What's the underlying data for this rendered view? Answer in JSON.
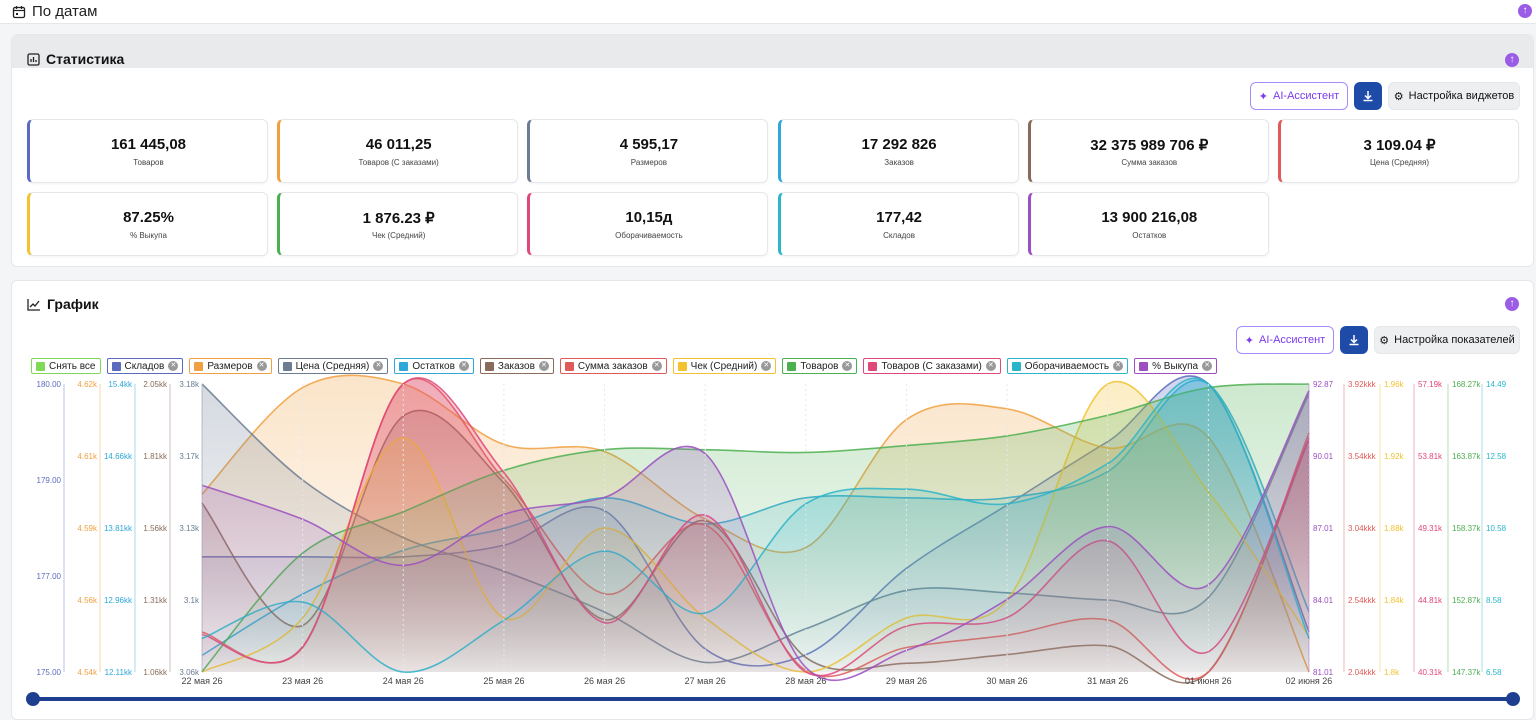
{
  "header": {
    "title": "По датам"
  },
  "stats": {
    "title": "Статистика",
    "ai_label": "AI-Ассистент",
    "settings_label": "Настройка виджетов",
    "cards": [
      {
        "value": "161 445,08",
        "label": "Товаров",
        "color": "#5b6bbf"
      },
      {
        "value": "46 011,25",
        "label": "Товаров (С заказами)",
        "color": "#f0a040"
      },
      {
        "value": "4 595,17",
        "label": "Размеров",
        "color": "#6b7c93"
      },
      {
        "value": "17 292 826",
        "label": "Заказов",
        "color": "#2ea8d8"
      },
      {
        "value": "32 375 989 706 ₽",
        "label": "Сумма заказов",
        "color": "#8a6a5a"
      },
      {
        "value": "3 109.04 ₽",
        "label": "Цена (Средняя)",
        "color": "#e05a5a"
      },
      {
        "value": "87.25%",
        "label": "% Выкупа",
        "color": "#f2c230"
      },
      {
        "value": "1 876.23 ₽",
        "label": "Чек (Средний)",
        "color": "#4caf50"
      },
      {
        "value": "10,15д",
        "label": "Оборачиваемость",
        "color": "#e0487a"
      },
      {
        "value": "177,42",
        "label": "Складов",
        "color": "#2bb5c8"
      },
      {
        "value": "13 900 216,08",
        "label": "Остатков",
        "color": "#9b4fc0"
      }
    ]
  },
  "graph": {
    "title": "График",
    "ai_label": "AI-Ассистент",
    "settings_label": "Настройка показателей",
    "legend": [
      {
        "label": "Снять все",
        "color": "#7ed957",
        "closable": false
      },
      {
        "label": "Складов",
        "color": "#5b6bbf",
        "closable": true
      },
      {
        "label": "Размеров",
        "color": "#f0a040",
        "closable": true
      },
      {
        "label": "Цена (Средняя)",
        "color": "#6b7c93",
        "closable": true
      },
      {
        "label": "Остатков",
        "color": "#2ea8d8",
        "closable": true
      },
      {
        "label": "Заказов",
        "color": "#8a6a5a",
        "closable": true
      },
      {
        "label": "Сумма заказов",
        "color": "#e05a5a",
        "closable": true
      },
      {
        "label": "Чек (Средний)",
        "color": "#f2c230",
        "closable": true
      },
      {
        "label": "Товаров",
        "color": "#4caf50",
        "closable": true
      },
      {
        "label": "Товаров (С заказами)",
        "color": "#e0487a",
        "closable": true
      },
      {
        "label": "Оборачиваемость",
        "color": "#2bb5c8",
        "closable": true
      },
      {
        "label": "% Выкупа",
        "color": "#9b4fc0",
        "closable": true
      }
    ]
  },
  "chart_data": {
    "type": "line",
    "x": [
      "22 мая 26",
      "23 мая 26",
      "24 мая 26",
      "25 мая 26",
      "26 мая 26",
      "27 мая 26",
      "28 мая 26",
      "29 мая 26",
      "30 мая 26",
      "31 мая 26",
      "01 июня 26",
      "02 июня 26"
    ],
    "axes_left": [
      {
        "color": "#5b6bbf",
        "ticks": [
          "180.00",
          "179.00",
          "177.00",
          "175.00"
        ]
      },
      {
        "color": "#f0a040",
        "ticks": [
          "4.62k",
          "4.61k",
          "4.59k",
          "4.56k",
          "4.54k"
        ]
      },
      {
        "color": "#2ea8d8",
        "ticks": [
          "15.4kk",
          "14.66kk",
          "13.81kk",
          "12.96kk",
          "12.11kk"
        ]
      },
      {
        "color": "#8a6a5a",
        "ticks": [
          "2.05kk",
          "1.81kk",
          "1.56kk",
          "1.31kk",
          "1.06kk"
        ]
      },
      {
        "color": "#6b7c93",
        "ticks": [
          "3.18k",
          "3.17k",
          "3.13k",
          "3.1k",
          "3.06k"
        ]
      }
    ],
    "axes_right": [
      {
        "color": "#9b4fc0",
        "ticks": [
          "92.87",
          "90.01",
          "87.01",
          "84.01",
          "81.01"
        ]
      },
      {
        "color": "#e05a5a",
        "ticks": [
          "3.92kkk",
          "3.54kkk",
          "3.04kkk",
          "2.54kkk",
          "2.04kkk"
        ]
      },
      {
        "color": "#f2c230",
        "ticks": [
          "1.96k",
          "1.92k",
          "1.88k",
          "1.84k",
          "1.8k"
        ]
      },
      {
        "color": "#e0487a",
        "ticks": [
          "57.19k",
          "53.81k",
          "49.31k",
          "44.81k",
          "40.31k"
        ]
      },
      {
        "color": "#4caf50",
        "ticks": [
          "168.27k",
          "163.87k",
          "158.37k",
          "152.87k",
          "147.37k"
        ]
      },
      {
        "color": "#2bb5c8",
        "ticks": [
          "14.49",
          "12.58",
          "10.58",
          "8.58",
          "6.58"
        ]
      }
    ],
    "series": [
      {
        "name": "Складов",
        "color": "#5b6bbf",
        "values": [
          177.0,
          177.0,
          177.0,
          177.2,
          177.8,
          175.4,
          175.3,
          176.8,
          177.9,
          179.0,
          180.0,
          175.7
        ],
        "range": [
          175,
          180
        ]
      },
      {
        "name": "Размеров",
        "color": "#f0a040",
        "values": [
          4590,
          4620,
          4621,
          4604,
          4602,
          4583,
          4575,
          4611,
          4614,
          4603,
          4606,
          4540
        ],
        "range": [
          4540,
          4621
        ]
      },
      {
        "name": "Цена (Средняя)",
        "color": "#6b7c93",
        "values": [
          3180,
          3140,
          3116,
          3102,
          3085,
          3064,
          3078,
          3094,
          3093,
          3090,
          3091,
          3176
        ],
        "range": [
          3060,
          3180
        ]
      },
      {
        "name": "Остатков",
        "color": "#2ea8d8",
        "values": [
          12.3,
          13.0,
          13.5,
          13.75,
          14.1,
          13.8,
          14.1,
          14.1,
          14.1,
          14.4,
          15.4,
          12.8
        ],
        "range": [
          12.11,
          15.4
        ]
      },
      {
        "name": "Заказов",
        "color": "#8a6a5a",
        "values": [
          1.64,
          1.22,
          1.94,
          1.71,
          1.24,
          1.58,
          1.11,
          1.09,
          1.12,
          1.15,
          1.06,
          1.86
        ],
        "range": [
          1.06,
          2.05
        ]
      },
      {
        "name": "Сумма заказов",
        "color": "#e05a5a",
        "values": [
          2.3,
          2.2,
          3.92,
          3.3,
          2.55,
          3.0,
          2.05,
          2.2,
          2.28,
          2.38,
          2.04,
          3.6
        ],
        "range": [
          2.04,
          3.92
        ]
      },
      {
        "name": "Чек (Средний)",
        "color": "#f2c230",
        "values": [
          1.8,
          1.83,
          1.93,
          1.83,
          1.88,
          1.83,
          1.8,
          1.83,
          1.84,
          1.96,
          1.9,
          1.82
        ],
        "range": [
          1.8,
          1.96
        ]
      },
      {
        "name": "Товаров",
        "color": "#4caf50",
        "values": [
          147.4,
          156.0,
          159.0,
          162.0,
          163.5,
          163.5,
          163.3,
          163.8,
          164.5,
          166.0,
          168.0,
          168.27
        ],
        "range": [
          147.37,
          168.27
        ]
      },
      {
        "name": "Товаров (С заказами)",
        "color": "#e0487a",
        "values": [
          42.5,
          41.8,
          57.19,
          52.0,
          43.2,
          49.5,
          40.31,
          43.0,
          43.5,
          48.0,
          41.5,
          54.0
        ],
        "range": [
          40.31,
          57.19
        ]
      },
      {
        "name": "Оборачиваемость",
        "color": "#2bb5c8",
        "values": [
          7.5,
          8.5,
          6.58,
          8.0,
          9.9,
          8.2,
          11.2,
          11.6,
          11.2,
          12.3,
          14.49,
          7.5
        ],
        "range": [
          6.58,
          14.49
        ]
      },
      {
        "name": "% Выкупа",
        "color": "#9b4fc0",
        "values": [
          88.7,
          87.3,
          85.4,
          87.5,
          88.2,
          90.0,
          81.2,
          81.9,
          84.0,
          87.0,
          84.6,
          92.6
        ],
        "range": [
          81.01,
          92.87
        ]
      }
    ]
  }
}
